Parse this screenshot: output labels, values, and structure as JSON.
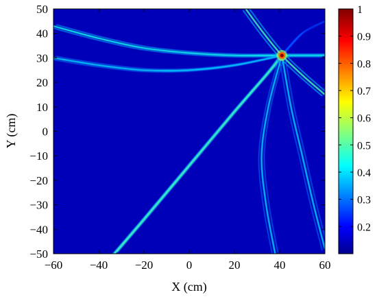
{
  "chart_data": {
    "type": "heatmap",
    "title": "",
    "xlabel": "X (cm)",
    "ylabel": "Y (cm)",
    "xlim": [
      -60,
      60
    ],
    "ylim": [
      -50,
      50
    ],
    "x_ticks": [
      "−60",
      "−40",
      "−20",
      "0",
      "20",
      "40",
      "60"
    ],
    "x_tick_values": [
      -60,
      -40,
      -20,
      0,
      20,
      40,
      60
    ],
    "y_ticks": [
      "50",
      "40",
      "30",
      "20",
      "10",
      "0",
      "−10",
      "−20",
      "−30",
      "−40",
      "−50"
    ],
    "y_tick_values": [
      50,
      40,
      30,
      20,
      10,
      0,
      -10,
      -20,
      -30,
      -40,
      -50
    ],
    "colormap": "jet",
    "background_value": 0.15,
    "peak": {
      "x": 41,
      "y": 31,
      "value": 1.0
    },
    "colorbar": {
      "range": [
        0.1,
        1.0
      ],
      "ticks": [
        "0.2",
        "0.3",
        "0.4",
        "0.5",
        "0.6",
        "0.7",
        "0.8",
        "0.9",
        "1"
      ],
      "tick_values": [
        0.2,
        0.3,
        0.4,
        0.5,
        0.6,
        0.7,
        0.8,
        0.9,
        1.0
      ]
    },
    "arcs": [
      {
        "name": "upper-left bundle",
        "points": [
          [
            -60,
            43
          ],
          [
            -40,
            38
          ],
          [
            -20,
            34
          ],
          [
            0,
            32
          ],
          [
            20,
            31
          ],
          [
            41,
            31
          ],
          [
            60,
            31
          ]
        ],
        "value": 0.45
      },
      {
        "name": "upper-left inner",
        "points": [
          [
            -60,
            30
          ],
          [
            -40,
            27
          ],
          [
            -20,
            25
          ],
          [
            0,
            25
          ],
          [
            20,
            27
          ],
          [
            41,
            31
          ]
        ],
        "value": 0.4
      },
      {
        "name": "diagonal",
        "points": [
          [
            -33,
            -50
          ],
          [
            -20,
            -36
          ],
          [
            0,
            -14
          ],
          [
            20,
            8
          ],
          [
            35,
            24
          ],
          [
            41,
            31
          ]
        ],
        "value": 0.5
      },
      {
        "name": "top arc",
        "points": [
          [
            25,
            50
          ],
          [
            33,
            40
          ],
          [
            41,
            31
          ],
          [
            50,
            23
          ],
          [
            60,
            15
          ]
        ],
        "value": 0.5
      },
      {
        "name": "lower right arc",
        "points": [
          [
            41,
            31
          ],
          [
            35,
            10
          ],
          [
            32,
            -10
          ],
          [
            34,
            -30
          ],
          [
            38,
            -50
          ]
        ],
        "value": 0.4
      },
      {
        "name": "lower right arc 2",
        "points": [
          [
            41,
            31
          ],
          [
            45,
            10
          ],
          [
            50,
            -10
          ],
          [
            55,
            -30
          ],
          [
            60,
            -48
          ]
        ],
        "value": 0.4
      },
      {
        "name": "right faint",
        "points": [
          [
            41,
            31
          ],
          [
            50,
            40
          ],
          [
            60,
            45
          ]
        ],
        "value": 0.3
      }
    ]
  }
}
